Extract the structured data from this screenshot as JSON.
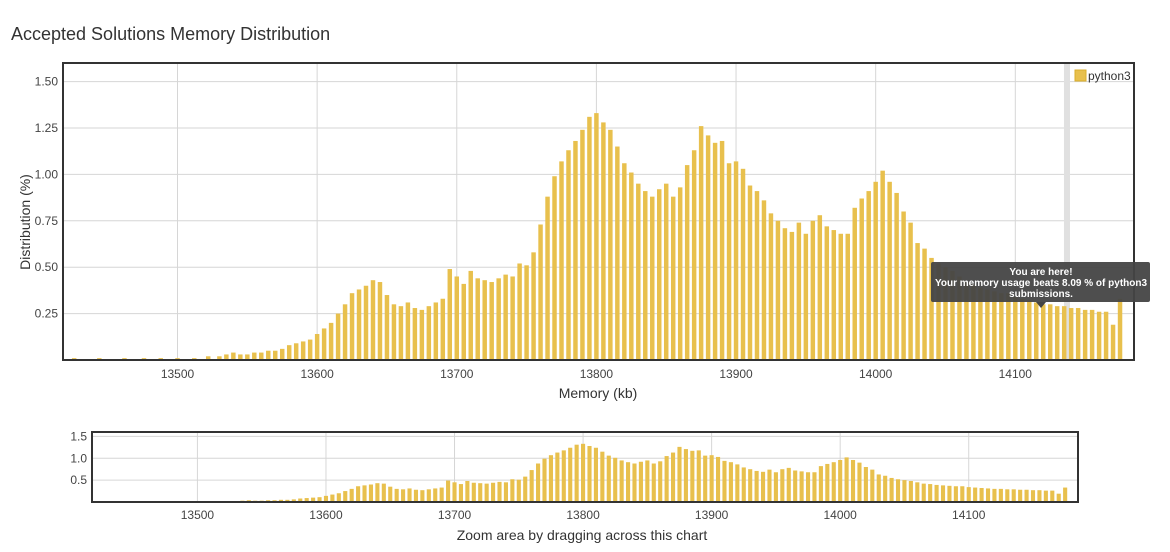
{
  "page_title": "Accepted Solutions Memory Distribution",
  "legend_label": "python3",
  "colors": {
    "bar": "#e8c04d",
    "bar_stroke": "#d9ae2c",
    "frame": "#333333",
    "grid": "#d6d6d6",
    "tooltip_bg": "#444444",
    "marker": "#e0e0e0"
  },
  "tooltip": {
    "line1": "You are here!",
    "line2": "Your memory usage beats 8.09 % of python3",
    "line3": "submissions."
  },
  "zoom_caption": "Zoom area by dragging across this chart",
  "chart_data": [
    {
      "type": "bar",
      "title": "Accepted Solutions Memory Distribution",
      "xlabel": "Memory (kb)",
      "ylabel": "Distribution (%)",
      "xlim": [
        13418,
        14185
      ],
      "ylim": [
        0,
        1.6
      ],
      "xticks": [
        13500,
        13600,
        13700,
        13800,
        13900,
        14000,
        14100
      ],
      "yticks": [
        0.25,
        0.5,
        0.75,
        1.0,
        1.25,
        1.5
      ],
      "ytick_labels": [
        "0.25",
        "0.50",
        "0.75",
        "1.00",
        "1.25",
        "1.50"
      ],
      "legend": "top-right",
      "grid": true,
      "marker_x": 14137,
      "series": [
        {
          "name": "python3",
          "x": [
            13426,
            13444,
            13462,
            13476,
            13488,
            13500,
            13512,
            13522,
            13530,
            13535,
            13540,
            13545,
            13550,
            13555,
            13560,
            13565,
            13570,
            13575,
            13580,
            13585,
            13590,
            13595,
            13600,
            13605,
            13610,
            13615,
            13620,
            13625,
            13630,
            13635,
            13640,
            13645,
            13650,
            13655,
            13660,
            13665,
            13670,
            13675,
            13680,
            13685,
            13690,
            13695,
            13700,
            13705,
            13710,
            13715,
            13720,
            13725,
            13730,
            13735,
            13740,
            13745,
            13750,
            13755,
            13760,
            13765,
            13770,
            13775,
            13780,
            13785,
            13790,
            13795,
            13800,
            13805,
            13810,
            13815,
            13820,
            13825,
            13830,
            13835,
            13840,
            13845,
            13850,
            13855,
            13860,
            13865,
            13870,
            13875,
            13880,
            13885,
            13890,
            13895,
            13900,
            13905,
            13910,
            13915,
            13920,
            13925,
            13930,
            13935,
            13940,
            13945,
            13950,
            13955,
            13960,
            13965,
            13970,
            13975,
            13980,
            13985,
            13990,
            13995,
            14000,
            14005,
            14010,
            14015,
            14020,
            14025,
            14030,
            14035,
            14040,
            14045,
            14050,
            14055,
            14060,
            14065,
            14070,
            14075,
            14080,
            14085,
            14090,
            14095,
            14100,
            14105,
            14110,
            14115,
            14120,
            14125,
            14130,
            14135,
            14140,
            14145,
            14150,
            14155,
            14160,
            14165,
            14170,
            14175
          ],
          "values": [
            0.01,
            0.01,
            0.01,
            0.01,
            0.01,
            0.01,
            0.01,
            0.02,
            0.02,
            0.03,
            0.04,
            0.03,
            0.03,
            0.04,
            0.04,
            0.05,
            0.05,
            0.06,
            0.08,
            0.09,
            0.1,
            0.11,
            0.14,
            0.17,
            0.2,
            0.25,
            0.3,
            0.36,
            0.38,
            0.4,
            0.43,
            0.42,
            0.35,
            0.3,
            0.29,
            0.31,
            0.28,
            0.27,
            0.29,
            0.31,
            0.33,
            0.49,
            0.45,
            0.41,
            0.48,
            0.44,
            0.43,
            0.42,
            0.44,
            0.46,
            0.45,
            0.52,
            0.51,
            0.58,
            0.73,
            0.88,
            0.99,
            1.07,
            1.13,
            1.18,
            1.24,
            1.31,
            1.33,
            1.28,
            1.24,
            1.15,
            1.06,
            1.01,
            0.95,
            0.91,
            0.88,
            0.92,
            0.95,
            0.88,
            0.93,
            1.05,
            1.13,
            1.26,
            1.21,
            1.17,
            1.18,
            1.06,
            1.07,
            1.03,
            0.94,
            0.91,
            0.86,
            0.79,
            0.75,
            0.71,
            0.69,
            0.74,
            0.68,
            0.75,
            0.78,
            0.72,
            0.7,
            0.68,
            0.68,
            0.82,
            0.87,
            0.91,
            0.96,
            1.02,
            0.96,
            0.9,
            0.8,
            0.74,
            0.63,
            0.6,
            0.55,
            0.52,
            0.5,
            0.48,
            0.45,
            0.42,
            0.41,
            0.39,
            0.38,
            0.37,
            0.36,
            0.36,
            0.34,
            0.33,
            0.32,
            0.31,
            0.3,
            0.3,
            0.29,
            0.29,
            0.28,
            0.28,
            0.27,
            0.27,
            0.26,
            0.26,
            0.19,
            0.33
          ]
        }
      ]
    },
    {
      "type": "bar",
      "title": "",
      "xlabel": "Zoom area by dragging across this chart",
      "ylabel": "",
      "xlim": [
        13418,
        14185
      ],
      "ylim": [
        0,
        1.6
      ],
      "xticks": [
        13500,
        13600,
        13700,
        13800,
        13900,
        14000,
        14100
      ],
      "yticks": [
        0.5,
        1.0,
        1.5
      ],
      "ytick_labels": [
        "0.5",
        "1.0",
        "1.5"
      ],
      "grid": true,
      "series_ref": "same as main chart"
    }
  ]
}
